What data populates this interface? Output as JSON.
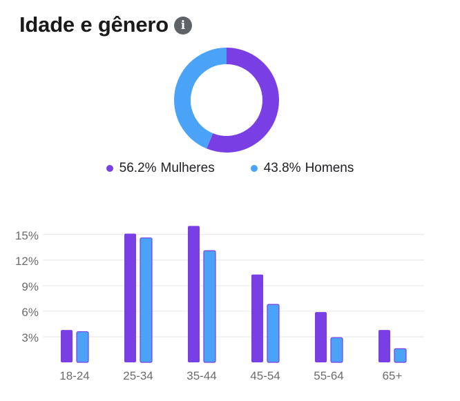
{
  "header": {
    "title": "Idade e gênero",
    "info_icon": "info-icon",
    "info_glyph": "i"
  },
  "colors": {
    "women": "#7a3fe4",
    "men": "#4aa3f7",
    "grid": "#e6e6e6",
    "tick_text": "#6b6b6b"
  },
  "chart_data": [
    {
      "type": "pie",
      "style": "donut",
      "slices": [
        {
          "label": "Mulheres",
          "percent_text": "56.2%",
          "value": 56.2
        },
        {
          "label": "Homens",
          "percent_text": "43.8%",
          "value": 43.8
        }
      ]
    },
    {
      "type": "bar",
      "categories": [
        "18-24",
        "25-34",
        "35-44",
        "45-54",
        "55-64",
        "65+"
      ],
      "series": [
        {
          "name": "Mulheres",
          "values": [
            3.8,
            15.1,
            16.0,
            10.3,
            5.9,
            3.8
          ]
        },
        {
          "name": "Homens",
          "values": [
            3.6,
            14.6,
            13.1,
            6.8,
            2.9,
            1.6
          ]
        }
      ],
      "yticks": [
        3,
        6,
        9,
        12,
        15
      ],
      "ytick_labels": [
        "3%",
        "6%",
        "9%",
        "12%",
        "15%"
      ],
      "ylim": [
        0,
        17
      ],
      "grid": true,
      "legend": "none"
    }
  ]
}
